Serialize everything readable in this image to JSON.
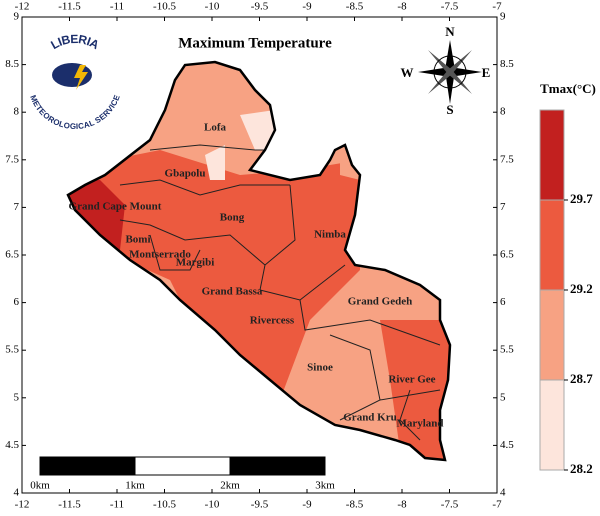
{
  "map": {
    "title": "Maximum Temperature",
    "logo": {
      "top": "LIBERIA",
      "bottom": "METEOROLOGICAL SERVICE"
    },
    "compass": {
      "n": "N",
      "s": "S",
      "e": "E",
      "w": "W"
    },
    "xlim": [
      -12,
      -7
    ],
    "ylim": [
      4,
      9
    ],
    "xticks": [
      -12,
      -11.5,
      -11,
      -10.5,
      -10,
      -9.5,
      -9,
      -8.5,
      -8,
      -7.5,
      -7
    ],
    "yticks": [
      4,
      4.5,
      5,
      5.5,
      6,
      6.5,
      7,
      7.5,
      8,
      8.5,
      9
    ],
    "counties": [
      "Lofa",
      "Gbapolu",
      "Grand Cape Mount",
      "Bong",
      "Nimba",
      "Bomi",
      "Montserrado",
      "Margibi",
      "Grand Bassa",
      "Grand Gedeh",
      "Rivercess",
      "Sinoe",
      "River Gee",
      "Grand Kru",
      "Maryland"
    ],
    "scale_bar": [
      "0km",
      "1km",
      "2km",
      "3km"
    ],
    "legend": {
      "title": "Tmax(°C)",
      "lim": [
        28.2,
        30.2
      ],
      "ticks": [
        28.2,
        28.7,
        29.2,
        29.7
      ],
      "colors": [
        "#fde5dc",
        "#f7a283",
        "#ec5a3f",
        "#c2201f"
      ]
    }
  }
}
